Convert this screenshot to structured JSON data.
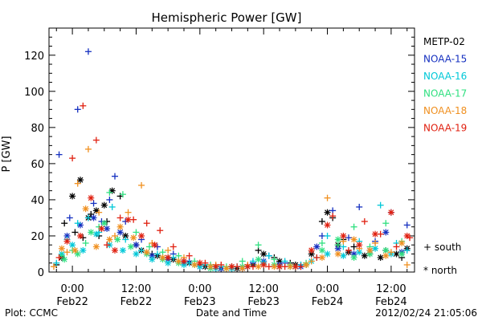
{
  "chart_data": {
    "type": "scatter",
    "title": "Hemispheric Power [GW]",
    "ylabel": "P [GW]",
    "xlabel": "Date and Time",
    "ylim": [
      0,
      135
    ],
    "yticks": [
      0,
      20,
      40,
      60,
      80,
      100,
      120
    ],
    "xlim_hours": [
      -4.4,
      64.4
    ],
    "xticks": [
      {
        "hour": 0,
        "time": "0:00",
        "date": "Feb22"
      },
      {
        "hour": 12,
        "time": "12:00",
        "date": "Feb22"
      },
      {
        "hour": 24,
        "time": "0:00",
        "date": "Feb23"
      },
      {
        "hour": 36,
        "time": "12:00",
        "date": "Feb23"
      },
      {
        "hour": 48,
        "time": "0:00",
        "date": "Feb24"
      },
      {
        "hour": 60,
        "time": "12:00",
        "date": "Feb24"
      }
    ],
    "grid": false,
    "legend_position": "right",
    "marker_legend": [
      {
        "symbol": "+",
        "label": "south"
      },
      {
        "symbol": "*",
        "label": "north"
      }
    ],
    "series": [
      {
        "name": "METP-02",
        "color": "#000000",
        "south": [
          [
            -3,
            4
          ],
          [
            -1.5,
            27
          ],
          [
            0.5,
            22
          ],
          [
            2,
            19
          ],
          [
            3.5,
            32
          ],
          [
            5,
            20
          ],
          [
            6.5,
            28
          ],
          [
            9,
            42
          ],
          [
            12,
            15
          ],
          [
            15,
            10
          ],
          [
            18,
            8
          ],
          [
            21,
            6
          ],
          [
            24,
            4
          ],
          [
            27,
            3
          ],
          [
            30,
            2
          ],
          [
            33,
            3
          ],
          [
            35,
            12
          ],
          [
            38,
            8
          ],
          [
            41,
            5
          ],
          [
            44,
            4
          ],
          [
            47,
            28
          ],
          [
            49,
            30
          ],
          [
            51,
            18
          ],
          [
            53,
            14
          ],
          [
            56,
            10
          ],
          [
            59,
            12
          ],
          [
            62,
            8
          ]
        ],
        "north": [
          [
            -2,
            8
          ],
          [
            0,
            42
          ],
          [
            1.5,
            51
          ],
          [
            3,
            30
          ],
          [
            4.5,
            34
          ],
          [
            6,
            37
          ],
          [
            7.5,
            45
          ],
          [
            10,
            20
          ],
          [
            13,
            12
          ],
          [
            16,
            9
          ],
          [
            19,
            7
          ],
          [
            22,
            5
          ],
          [
            25,
            3
          ],
          [
            28,
            2
          ],
          [
            31,
            2
          ],
          [
            34,
            4
          ],
          [
            36,
            10
          ],
          [
            39,
            6
          ],
          [
            42,
            4
          ],
          [
            45,
            10
          ],
          [
            48,
            33
          ],
          [
            50,
            15
          ],
          [
            52,
            11
          ],
          [
            55,
            9
          ],
          [
            58,
            8
          ],
          [
            61,
            10
          ],
          [
            63,
            13
          ]
        ]
      },
      {
        "name": "NOAA-15",
        "color": "#1530c0",
        "south": [
          [
            -2.5,
            65
          ],
          [
            -0.5,
            30
          ],
          [
            1,
            90
          ],
          [
            3,
            122
          ],
          [
            4,
            38
          ],
          [
            5.5,
            28
          ],
          [
            7,
            40
          ],
          [
            8,
            53
          ],
          [
            10,
            28
          ],
          [
            13,
            18
          ],
          [
            16,
            14
          ],
          [
            19,
            10
          ],
          [
            22,
            6
          ],
          [
            26,
            3
          ],
          [
            30,
            3
          ],
          [
            34,
            5
          ],
          [
            37,
            9
          ],
          [
            40,
            5
          ],
          [
            43,
            4
          ],
          [
            47,
            20
          ],
          [
            49,
            34
          ],
          [
            52,
            19
          ],
          [
            54,
            36
          ],
          [
            57,
            17
          ],
          [
            60,
            33
          ],
          [
            63,
            26
          ]
        ],
        "north": [
          [
            -1,
            20
          ],
          [
            1.5,
            26
          ],
          [
            4,
            30
          ],
          [
            6.5,
            24
          ],
          [
            9,
            22
          ],
          [
            12,
            15
          ],
          [
            15,
            9
          ],
          [
            18,
            7
          ],
          [
            21,
            5
          ],
          [
            24,
            3
          ],
          [
            28,
            2
          ],
          [
            32,
            2
          ],
          [
            36,
            6
          ],
          [
            39,
            4
          ],
          [
            43,
            3
          ],
          [
            46,
            14
          ],
          [
            50,
            13
          ],
          [
            53,
            10
          ],
          [
            56,
            12
          ],
          [
            59,
            22
          ],
          [
            62,
            11
          ]
        ]
      },
      {
        "name": "NOAA-16",
        "color": "#00c8d8",
        "south": [
          [
            -3,
            5
          ],
          [
            -1,
            18
          ],
          [
            1,
            27
          ],
          [
            3,
            30
          ],
          [
            5,
            22
          ],
          [
            7.5,
            36
          ],
          [
            10,
            18
          ],
          [
            13,
            12
          ],
          [
            16,
            10
          ],
          [
            19,
            8
          ],
          [
            22,
            5
          ],
          [
            25,
            4
          ],
          [
            28,
            3
          ],
          [
            31,
            3
          ],
          [
            34,
            6
          ],
          [
            37,
            9
          ],
          [
            40,
            6
          ],
          [
            43,
            4
          ],
          [
            46,
            8
          ],
          [
            48,
            20
          ],
          [
            51,
            14
          ],
          [
            54,
            17
          ],
          [
            58,
            37
          ],
          [
            61,
            16
          ],
          [
            63,
            12
          ]
        ],
        "north": [
          [
            -2,
            10
          ],
          [
            0,
            15
          ],
          [
            2,
            12
          ],
          [
            4.5,
            21
          ],
          [
            7,
            15
          ],
          [
            9.5,
            12
          ],
          [
            12,
            10
          ],
          [
            15,
            7
          ],
          [
            18,
            5
          ],
          [
            21,
            4
          ],
          [
            24,
            3
          ],
          [
            27,
            2
          ],
          [
            30,
            2
          ],
          [
            33,
            3
          ],
          [
            36,
            5
          ],
          [
            39,
            3
          ],
          [
            42,
            3
          ],
          [
            45,
            6
          ],
          [
            48,
            10
          ],
          [
            51,
            9
          ],
          [
            54,
            11
          ],
          [
            57,
            13
          ],
          [
            60,
            10
          ]
        ]
      },
      {
        "name": "NOAA-17",
        "color": "#30e080",
        "south": [
          [
            -2,
            9
          ],
          [
            0,
            12
          ],
          [
            2.5,
            16
          ],
          [
            5,
            25
          ],
          [
            7,
            44
          ],
          [
            9.5,
            43
          ],
          [
            12,
            22
          ],
          [
            14.5,
            14
          ],
          [
            17,
            11
          ],
          [
            20,
            9
          ],
          [
            23,
            6
          ],
          [
            26,
            4
          ],
          [
            29,
            3
          ],
          [
            32,
            6
          ],
          [
            35,
            15
          ],
          [
            38,
            7
          ],
          [
            41,
            4
          ],
          [
            44,
            5
          ],
          [
            47,
            16
          ],
          [
            50,
            15
          ],
          [
            53,
            25
          ],
          [
            56,
            14
          ],
          [
            59,
            27
          ],
          [
            62,
            17
          ]
        ],
        "north": [
          [
            -1.5,
            7
          ],
          [
            1,
            10
          ],
          [
            3.5,
            22
          ],
          [
            6,
            27
          ],
          [
            8.5,
            18
          ],
          [
            11,
            14
          ],
          [
            14,
            10
          ],
          [
            17,
            7
          ],
          [
            20,
            5
          ],
          [
            23,
            4
          ],
          [
            26,
            2
          ],
          [
            29,
            2
          ],
          [
            32,
            3
          ],
          [
            35,
            7
          ],
          [
            38,
            4
          ],
          [
            41,
            3
          ],
          [
            44,
            4
          ],
          [
            47,
            12
          ],
          [
            50,
            18
          ],
          [
            53,
            8
          ],
          [
            56,
            10
          ],
          [
            59,
            12
          ],
          [
            62,
            10
          ]
        ]
      },
      {
        "name": "NOAA-18",
        "color": "#f09020",
        "south": [
          [
            -3.5,
            3
          ],
          [
            -1,
            11
          ],
          [
            1,
            49
          ],
          [
            3,
            68
          ],
          [
            5,
            33
          ],
          [
            8,
            20
          ],
          [
            10.5,
            33
          ],
          [
            13,
            48
          ],
          [
            15,
            16
          ],
          [
            18,
            12
          ],
          [
            21,
            8
          ],
          [
            24,
            5
          ],
          [
            27,
            4
          ],
          [
            30,
            3
          ],
          [
            33,
            4
          ],
          [
            36,
            4
          ],
          [
            39,
            3
          ],
          [
            42,
            3
          ],
          [
            45,
            6
          ],
          [
            48,
            41
          ],
          [
            51,
            17
          ],
          [
            54,
            13
          ],
          [
            57,
            16
          ],
          [
            60,
            11
          ],
          [
            63,
            4
          ]
        ],
        "north": [
          [
            -2,
            13
          ],
          [
            0.5,
            12
          ],
          [
            2.5,
            35
          ],
          [
            4.5,
            14
          ],
          [
            7,
            18
          ],
          [
            9,
            25
          ],
          [
            11.5,
            19
          ],
          [
            14,
            11
          ],
          [
            17,
            8
          ],
          [
            20,
            6
          ],
          [
            23,
            4
          ],
          [
            26,
            3
          ],
          [
            29,
            2
          ],
          [
            32,
            2
          ],
          [
            35,
            3
          ],
          [
            38,
            3
          ],
          [
            41,
            3
          ],
          [
            44,
            4
          ],
          [
            47,
            8
          ],
          [
            50,
            10
          ],
          [
            53,
            18
          ],
          [
            56,
            12
          ],
          [
            59,
            9
          ],
          [
            62,
            16
          ]
        ]
      },
      {
        "name": "NOAA-19",
        "color": "#e02010",
        "south": [
          [
            -2.5,
            8
          ],
          [
            0,
            63
          ],
          [
            2,
            92
          ],
          [
            4.5,
            73
          ],
          [
            6.5,
            15
          ],
          [
            9,
            30
          ],
          [
            11.5,
            29
          ],
          [
            14,
            27
          ],
          [
            16.5,
            23
          ],
          [
            19,
            14
          ],
          [
            22,
            9
          ],
          [
            25,
            5
          ],
          [
            28,
            4
          ],
          [
            31,
            3
          ],
          [
            34,
            3
          ],
          [
            37,
            3
          ],
          [
            40,
            3
          ],
          [
            43,
            3
          ],
          [
            46,
            8
          ],
          [
            49,
            31
          ],
          [
            52,
            12
          ],
          [
            55,
            28
          ],
          [
            58,
            21
          ],
          [
            61,
            14
          ],
          [
            63.5,
            19
          ]
        ],
        "north": [
          [
            -1,
            17
          ],
          [
            1.5,
            20
          ],
          [
            3.5,
            41
          ],
          [
            5.5,
            24
          ],
          [
            8,
            12
          ],
          [
            10.5,
            29
          ],
          [
            13,
            20
          ],
          [
            15.5,
            15
          ],
          [
            18,
            8
          ],
          [
            21,
            6
          ],
          [
            24,
            5
          ],
          [
            27,
            3
          ],
          [
            30,
            3
          ],
          [
            33,
            3
          ],
          [
            36,
            4
          ],
          [
            39,
            3
          ],
          [
            42,
            3
          ],
          [
            45,
            12
          ],
          [
            48,
            26
          ],
          [
            51,
            20
          ],
          [
            54,
            15
          ],
          [
            57,
            21
          ],
          [
            60,
            33
          ],
          [
            63,
            20
          ]
        ]
      }
    ]
  },
  "footer": {
    "plot_credit": "Plot: CCMC",
    "timestamp": "2012/02/24 21:05:06"
  }
}
